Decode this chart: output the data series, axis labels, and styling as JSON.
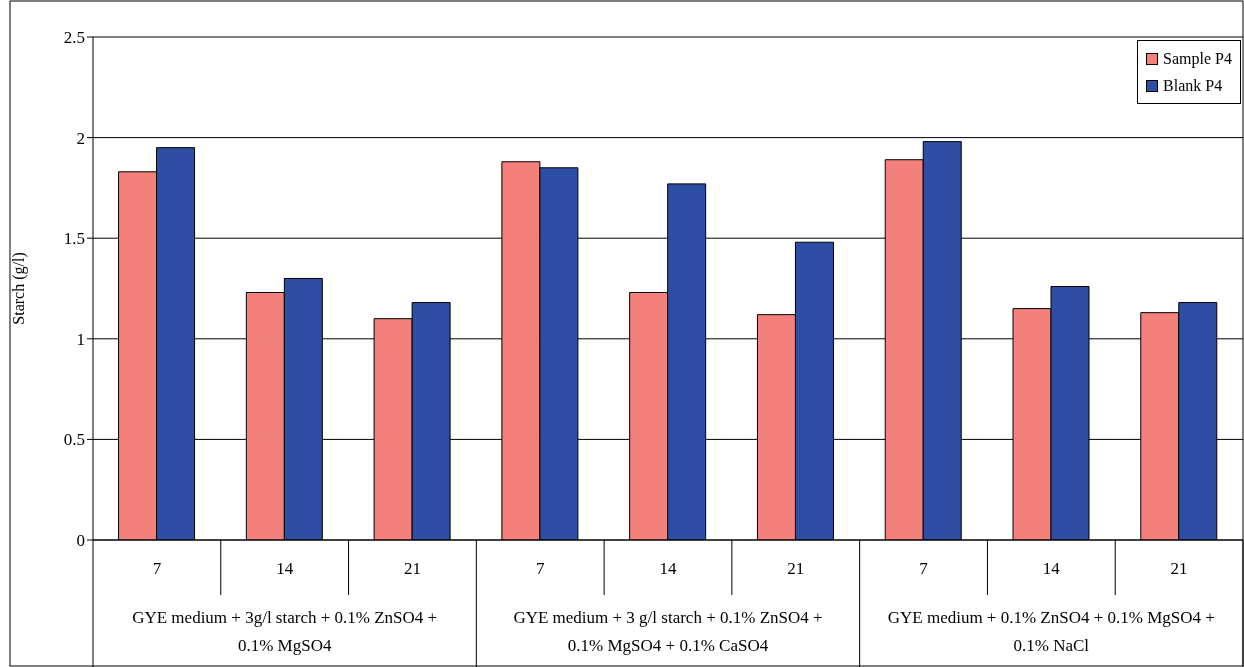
{
  "chart_data": {
    "type": "bar",
    "ylabel": "Starch (g/l)",
    "categories": [
      "7",
      "14",
      "21",
      "7",
      "14",
      "21",
      "7",
      "14",
      "21"
    ],
    "series": [
      {
        "name": "Sample P4",
        "color": "#f4807c",
        "values": [
          1.83,
          1.23,
          1.1,
          1.88,
          1.23,
          1.12,
          1.89,
          1.15,
          1.13
        ]
      },
      {
        "name": "Blank P4",
        "color": "#2e4ea3",
        "values": [
          1.95,
          1.3,
          1.18,
          1.85,
          1.77,
          1.48,
          1.98,
          1.26,
          1.18
        ]
      }
    ],
    "ylim": [
      0,
      2.5
    ],
    "yticks": [
      0,
      0.5,
      1,
      1.5,
      2,
      2.5
    ],
    "grid": "y",
    "legend": "top right",
    "annotations": [
      "GYE medium + 3g/l starch + 0.1% ZnSO4 + 0.1% MgSO4",
      "GYE medium + 3 g/l starch + 0.1% ZnSO4 + 0.1% MgSO4 + 0.1% CaSO4",
      "GYE medium + 0.1% ZnSO4 + 0.1% MgSO4 + 0.1% NaCl"
    ]
  }
}
